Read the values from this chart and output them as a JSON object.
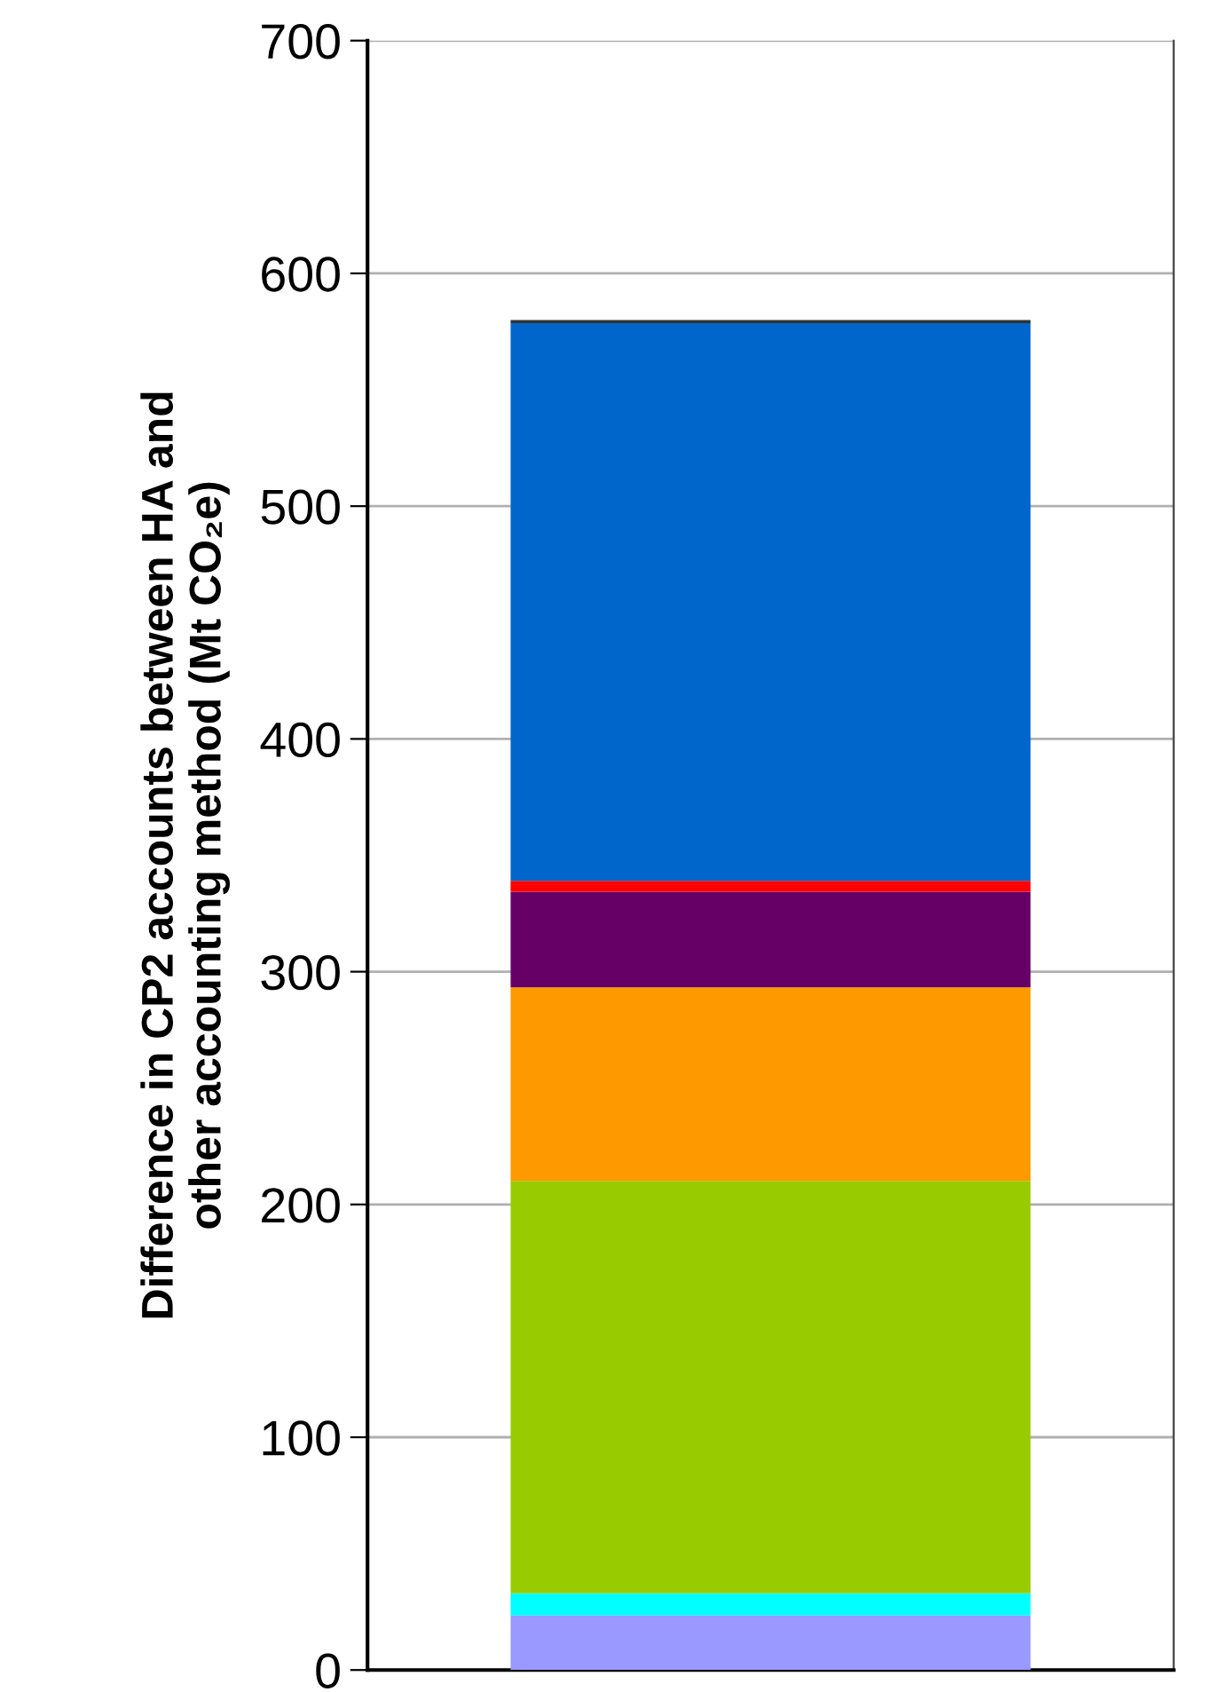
{
  "chart_data": {
    "type": "bar",
    "stacked": true,
    "categories": [
      null
    ],
    "ylabel": "Difference in CP2 accounts between HA and\nother accounting method (Mt CO₂e)",
    "series": [
      {
        "color": "#9999ff",
        "values": [
          23.4
        ]
      },
      {
        "color": "#00ffff",
        "values": [
          9.6
        ]
      },
      {
        "color": "#99cc00",
        "values": [
          177.1
        ]
      },
      {
        "color": "#ff9900",
        "values": [
          83.2
        ]
      },
      {
        "color": "#660066",
        "values": [
          41.1
        ]
      },
      {
        "color": "#ff0000",
        "values": [
          4.6
        ]
      },
      {
        "color": "#0066cc",
        "values": [
          239.6
        ]
      },
      {
        "color": "#333333",
        "values": [
          1.4
        ]
      }
    ],
    "ylim": [
      0,
      700
    ],
    "yticks": [
      0,
      100,
      200,
      300,
      400,
      500,
      600,
      700
    ],
    "grid": "y",
    "legend": false
  }
}
